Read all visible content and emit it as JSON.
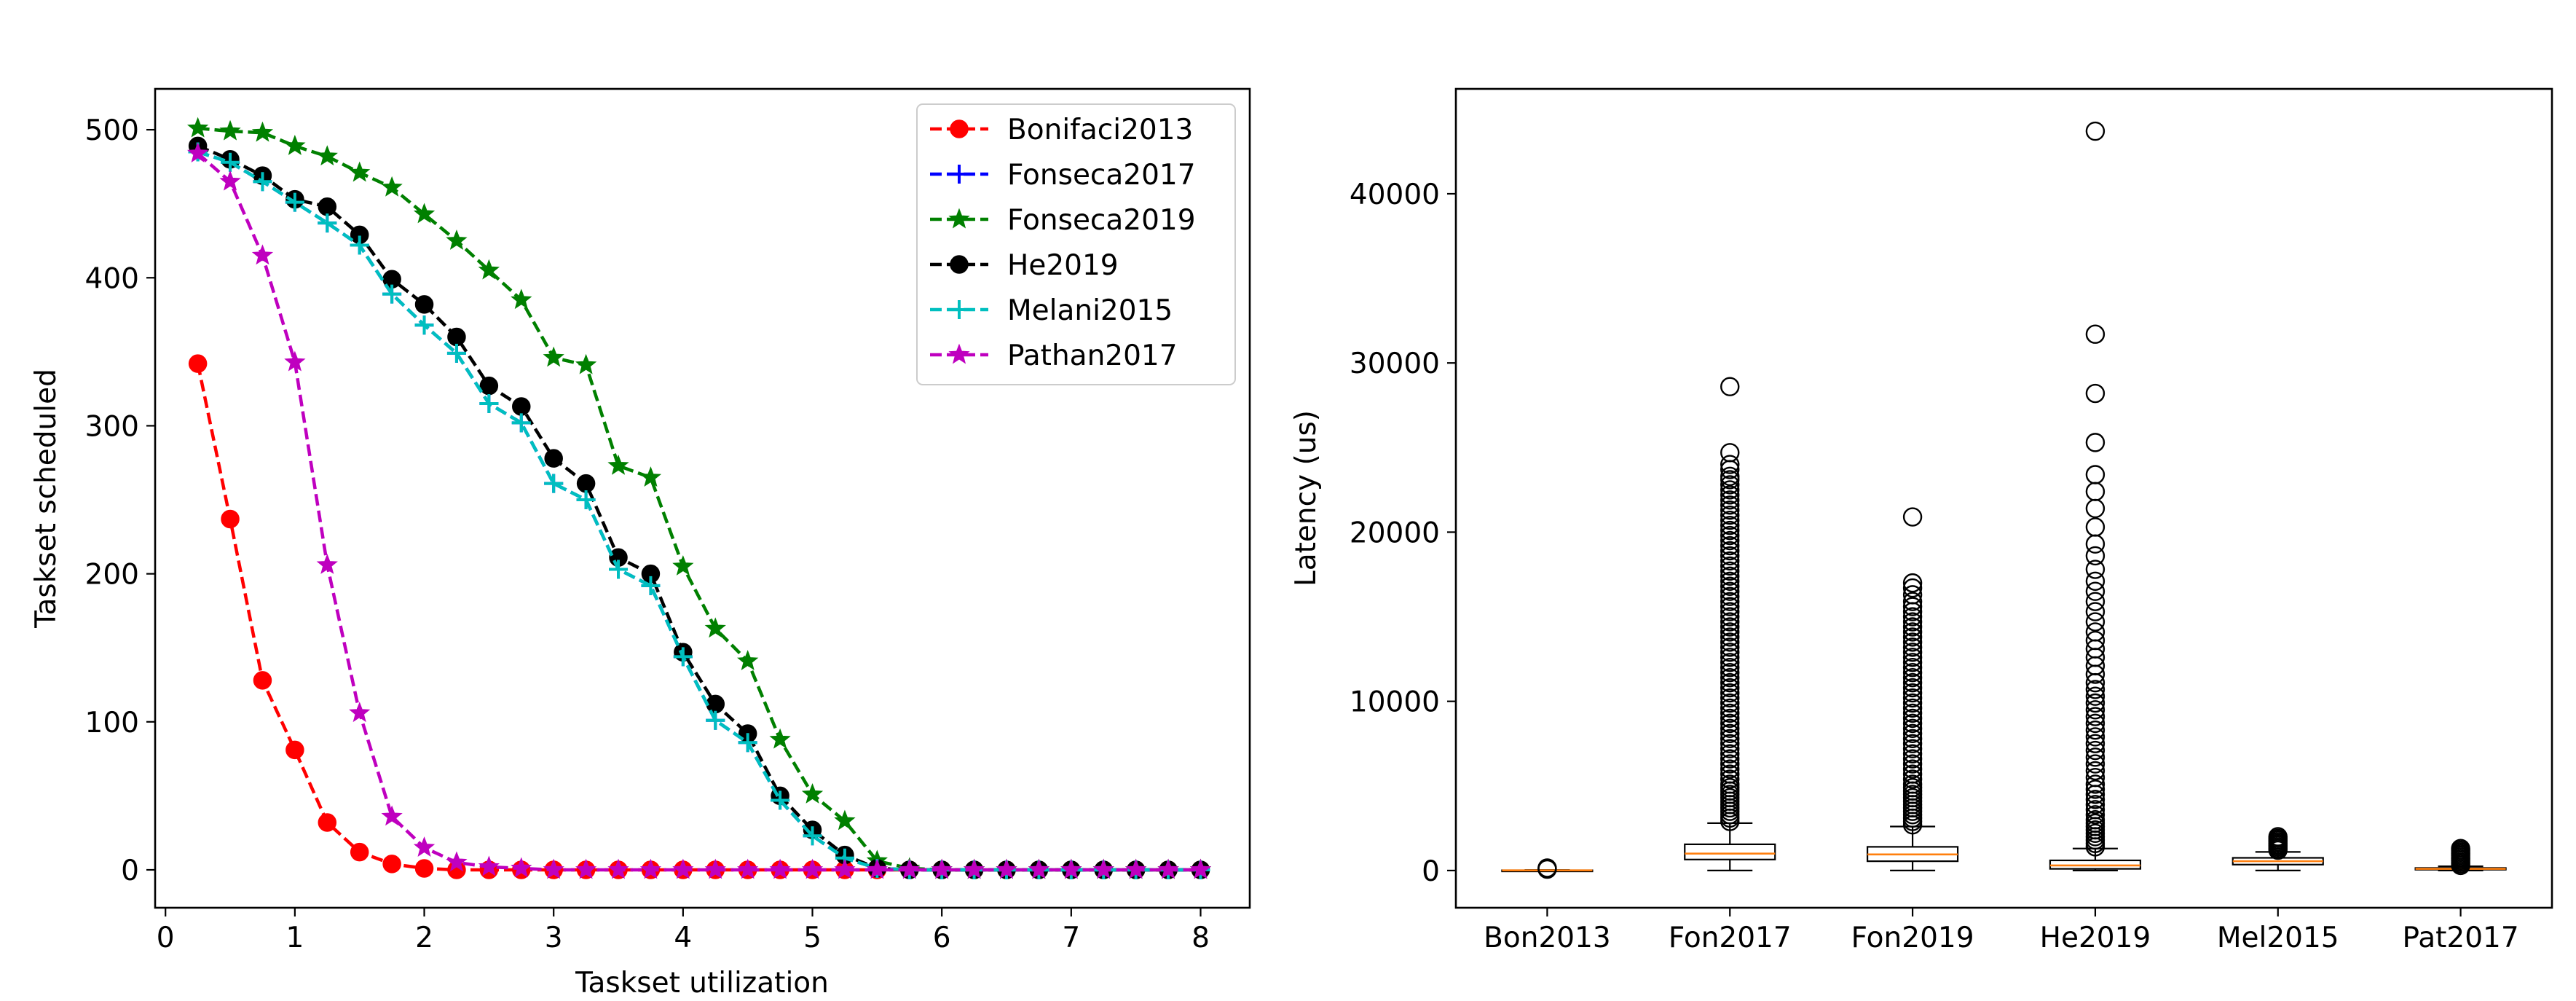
{
  "chart_data": [
    {
      "type": "line",
      "xlabel": "Taskset utilization",
      "ylabel": "Taskset scheduled",
      "xlim": [
        -0.08,
        8.38
      ],
      "ylim": [
        -25.6,
        527.6
      ],
      "xticks": [
        0,
        1,
        2,
        3,
        4,
        5,
        6,
        7,
        8
      ],
      "yticks": [
        0,
        100,
        200,
        300,
        400,
        500
      ],
      "legend_position": "upper right",
      "x": [
        0.25,
        0.5,
        0.75,
        1.0,
        1.25,
        1.5,
        1.75,
        2.0,
        2.25,
        2.5,
        2.75,
        3.0,
        3.25,
        3.5,
        3.75,
        4.0,
        4.25,
        4.5,
        4.75,
        5.0,
        5.25,
        5.5,
        5.75,
        6.0,
        6.25,
        6.5,
        6.75,
        7.0,
        7.25,
        7.5,
        7.75,
        8.0
      ],
      "series": [
        {
          "name": "Bonifaci2013",
          "color": "#ff0000",
          "marker": "circle",
          "values": [
            342,
            237,
            128,
            81,
            32,
            12,
            4,
            1,
            0,
            0,
            0,
            0,
            0,
            0,
            0,
            0,
            0,
            0,
            0,
            0,
            0,
            0,
            0,
            0,
            0,
            0,
            0,
            0,
            0,
            0,
            0,
            0
          ]
        },
        {
          "name": "Fonseca2017",
          "color": "#0000ff",
          "marker": "plus",
          "values": [
            485,
            478,
            465,
            451,
            437,
            422,
            389,
            368,
            349,
            315,
            302,
            261,
            250,
            203,
            192,
            144,
            101,
            86,
            47,
            23,
            8,
            1,
            0,
            0,
            0,
            0,
            0,
            0,
            0,
            0,
            0,
            0
          ]
        },
        {
          "name": "Fonseca2019",
          "color": "#008000",
          "marker": "star",
          "values": [
            501,
            499,
            498,
            489,
            482,
            471,
            461,
            443,
            425,
            405,
            385,
            346,
            341,
            273,
            265,
            205,
            163,
            141,
            88,
            51,
            33,
            6,
            1,
            0,
            0,
            0,
            0,
            0,
            0,
            0,
            0,
            0
          ]
        },
        {
          "name": "He2019",
          "color": "#000000",
          "marker": "circle",
          "values": [
            489,
            480,
            469,
            453,
            448,
            429,
            399,
            382,
            360,
            327,
            313,
            278,
            261,
            211,
            200,
            147,
            112,
            92,
            50,
            27,
            10,
            1,
            0,
            0,
            0,
            0,
            0,
            0,
            0,
            0,
            0,
            0
          ]
        },
        {
          "name": "Melani2015",
          "color": "#00bfbf",
          "marker": "plus",
          "values": [
            485,
            478,
            465,
            451,
            437,
            422,
            389,
            368,
            349,
            315,
            302,
            261,
            250,
            203,
            192,
            144,
            101,
            86,
            47,
            23,
            8,
            1,
            0,
            0,
            0,
            0,
            0,
            0,
            0,
            0,
            0,
            0
          ]
        },
        {
          "name": "Pathan2017",
          "color": "#bf00bf",
          "marker": "star",
          "values": [
            484,
            465,
            415,
            343,
            206,
            106,
            36,
            15,
            5,
            2,
            1,
            0,
            0,
            0,
            0,
            0,
            0,
            0,
            0,
            0,
            0,
            0,
            0,
            0,
            0,
            0,
            0,
            0,
            0,
            0,
            0,
            0
          ]
        }
      ]
    },
    {
      "type": "box",
      "ylabel": "Latency (us)",
      "ylim": [
        -2200,
        46200
      ],
      "yticks": [
        0,
        10000,
        20000,
        30000,
        40000
      ],
      "categories": [
        "Bon2013",
        "Fon2017",
        "Fon2019",
        "He2019",
        "Mel2015",
        "Pat2017"
      ],
      "box_color": "#000000",
      "median_color": "#ff7f0e",
      "boxes": [
        {
          "q1": 5,
          "median": 10,
          "q3": 15,
          "whisker_low": 0,
          "whisker_high": 30,
          "outliers": [
            80,
            120,
            150
          ]
        },
        {
          "q1": 650,
          "median": 1000,
          "q3": 1550,
          "whisker_low": 0,
          "whisker_high": 2800,
          "outliers": [
            2900,
            3100,
            3300,
            3500,
            3700,
            3900,
            4100,
            4300,
            4500,
            4700,
            4900,
            5100,
            5400,
            5700,
            6000,
            6300,
            6600,
            6900,
            7200,
            7500,
            7800,
            8100,
            8400,
            8700,
            9000,
            9300,
            9600,
            9900,
            10200,
            10500,
            10800,
            11100,
            11400,
            11700,
            12000,
            12300,
            12600,
            12900,
            13200,
            13500,
            13800,
            14100,
            14400,
            14700,
            15000,
            15300,
            15600,
            15900,
            16200,
            16500,
            16800,
            17100,
            17400,
            17700,
            18000,
            18300,
            18600,
            18900,
            19200,
            19500,
            19800,
            20100,
            20400,
            20700,
            21000,
            21300,
            21600,
            21900,
            22200,
            22500,
            22800,
            23100,
            23300,
            23700,
            24000,
            24700,
            28600
          ]
        },
        {
          "q1": 550,
          "median": 950,
          "q3": 1400,
          "whisker_low": 0,
          "whisker_high": 2600,
          "outliers": [
            2700,
            2900,
            3100,
            3300,
            3500,
            3700,
            3900,
            4100,
            4300,
            4500,
            4700,
            4900,
            5100,
            5400,
            5700,
            6000,
            6300,
            6600,
            6900,
            7200,
            7500,
            7800,
            8100,
            8400,
            8700,
            9000,
            9300,
            9600,
            9900,
            10200,
            10500,
            10800,
            11100,
            11400,
            11700,
            12000,
            12300,
            12600,
            12900,
            13200,
            13500,
            13800,
            14100,
            14400,
            14700,
            15000,
            15300,
            15600,
            15900,
            16300,
            16700,
            17000,
            20900
          ]
        },
        {
          "q1": 100,
          "median": 300,
          "q3": 600,
          "whisker_low": 0,
          "whisker_high": 1300,
          "outliers": [
            1400,
            1600,
            1800,
            2000,
            2200,
            2400,
            2600,
            2800,
            3000,
            3300,
            3600,
            3900,
            4200,
            4500,
            4800,
            5100,
            5500,
            5900,
            6300,
            6700,
            7100,
            7500,
            7900,
            8300,
            8700,
            9100,
            9500,
            9900,
            10300,
            10700,
            11100,
            11600,
            12100,
            12600,
            13100,
            13600,
            14100,
            14700,
            15300,
            15900,
            16500,
            17100,
            17800,
            18600,
            19300,
            20300,
            21400,
            22400,
            23400,
            25300,
            28200,
            31700,
            43700
          ]
        },
        {
          "q1": 350,
          "median": 550,
          "q3": 750,
          "whisker_low": 0,
          "whisker_high": 1100,
          "outliers": [
            1200,
            1300,
            1400,
            1500,
            1600,
            1700,
            1800,
            1900,
            2000
          ]
        },
        {
          "q1": 50,
          "median": 100,
          "q3": 150,
          "whisker_low": 0,
          "whisker_high": 250,
          "outliers": [
            300,
            400,
            500,
            600,
            700,
            800,
            900,
            1000,
            1100,
            1200,
            1300
          ]
        }
      ]
    }
  ]
}
